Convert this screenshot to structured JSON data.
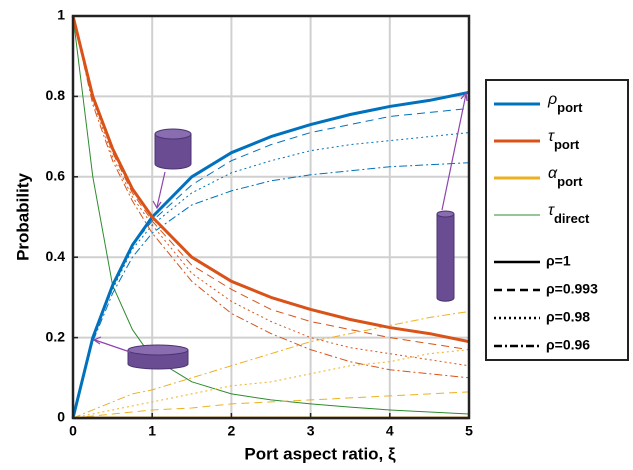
{
  "chart_data": {
    "type": "line",
    "x_label": "Port aspect ratio, ξ",
    "y_label": "Probability",
    "x": [
      0,
      0.25,
      0.5,
      0.75,
      1,
      1.5,
      2,
      2.5,
      3,
      3.5,
      4,
      4.5,
      5
    ],
    "xlim": [
      0,
      5
    ],
    "ylim": [
      0,
      1
    ],
    "xticks": [
      0,
      1,
      2,
      3,
      4,
      5
    ],
    "yticks": [
      0,
      0.2,
      0.4,
      0.6,
      0.8,
      1
    ],
    "grid": true,
    "series": [
      {
        "name": "ρ",
        "sub": "port",
        "color": "#0072bd",
        "width": 3,
        "style": "solid",
        "values": [
          0,
          0.2,
          0.33,
          0.43,
          0.5,
          0.6,
          0.66,
          0.7,
          0.73,
          0.755,
          0.775,
          0.79,
          0.81
        ]
      },
      {
        "name": "τ",
        "sub": "port",
        "color": "#d95319",
        "width": 3,
        "style": "solid",
        "values": [
          1,
          0.8,
          0.67,
          0.57,
          0.5,
          0.4,
          0.34,
          0.3,
          0.27,
          0.245,
          0.225,
          0.21,
          0.19
        ]
      },
      {
        "name": "α",
        "sub": "port",
        "color": "#edb120",
        "width": 3,
        "style": "solid",
        "values": [
          0,
          0,
          0,
          0,
          0,
          0,
          0,
          0,
          0,
          0,
          0,
          0,
          0
        ]
      },
      {
        "name": "τ",
        "sub": "direct",
        "color": "#2e8b2e",
        "width": 1,
        "style": "solid",
        "values": [
          1,
          0.6,
          0.33,
          0.22,
          0.15,
          0.09,
          0.06,
          0.045,
          0.035,
          0.027,
          0.02,
          0.015,
          0.01
        ]
      },
      {
        "color": "#0072bd",
        "width": 1,
        "style": "dashed",
        "values": [
          0,
          0.2,
          0.33,
          0.43,
          0.49,
          0.58,
          0.64,
          0.68,
          0.71,
          0.73,
          0.75,
          0.76,
          0.77
        ]
      },
      {
        "color": "#0072bd",
        "width": 1,
        "style": "dotted",
        "values": [
          0,
          0.2,
          0.32,
          0.42,
          0.48,
          0.56,
          0.61,
          0.64,
          0.665,
          0.68,
          0.69,
          0.7,
          0.71
        ]
      },
      {
        "color": "#0072bd",
        "width": 1,
        "style": "dashdot",
        "values": [
          0,
          0.19,
          0.31,
          0.4,
          0.46,
          0.53,
          0.565,
          0.59,
          0.605,
          0.615,
          0.625,
          0.63,
          0.635
        ]
      },
      {
        "color": "#d95319",
        "width": 1,
        "style": "dashed",
        "values": [
          1,
          0.8,
          0.66,
          0.56,
          0.49,
          0.38,
          0.32,
          0.27,
          0.24,
          0.22,
          0.2,
          0.185,
          0.17
        ]
      },
      {
        "color": "#d95319",
        "width": 1,
        "style": "dotted",
        "values": [
          1,
          0.79,
          0.65,
          0.55,
          0.48,
          0.36,
          0.29,
          0.24,
          0.2,
          0.175,
          0.16,
          0.145,
          0.13
        ]
      },
      {
        "color": "#d95319",
        "width": 1,
        "style": "dashdot",
        "values": [
          1,
          0.78,
          0.64,
          0.54,
          0.46,
          0.34,
          0.26,
          0.21,
          0.17,
          0.14,
          0.12,
          0.11,
          0.1
        ]
      },
      {
        "color": "#edb120",
        "width": 1,
        "style": "dashed",
        "values": [
          0,
          0.005,
          0.01,
          0.015,
          0.02,
          0.025,
          0.035,
          0.04,
          0.045,
          0.05,
          0.055,
          0.06,
          0.065
        ]
      },
      {
        "color": "#edb120",
        "width": 1,
        "style": "dotted",
        "values": [
          0,
          0.01,
          0.02,
          0.03,
          0.04,
          0.06,
          0.08,
          0.09,
          0.11,
          0.13,
          0.14,
          0.16,
          0.17
        ]
      },
      {
        "color": "#edb120",
        "width": 1,
        "style": "dashdot",
        "values": [
          0,
          0.02,
          0.04,
          0.06,
          0.07,
          0.1,
          0.13,
          0.16,
          0.19,
          0.21,
          0.23,
          0.25,
          0.265
        ]
      }
    ],
    "style_legend": [
      {
        "label": "ρ=1",
        "style": "solid"
      },
      {
        "label": "ρ=0.993",
        "style": "dashed"
      },
      {
        "label": "ρ=0.98",
        "style": "dotted"
      },
      {
        "label": "ρ=0.96",
        "style": "dashdot"
      }
    ]
  }
}
